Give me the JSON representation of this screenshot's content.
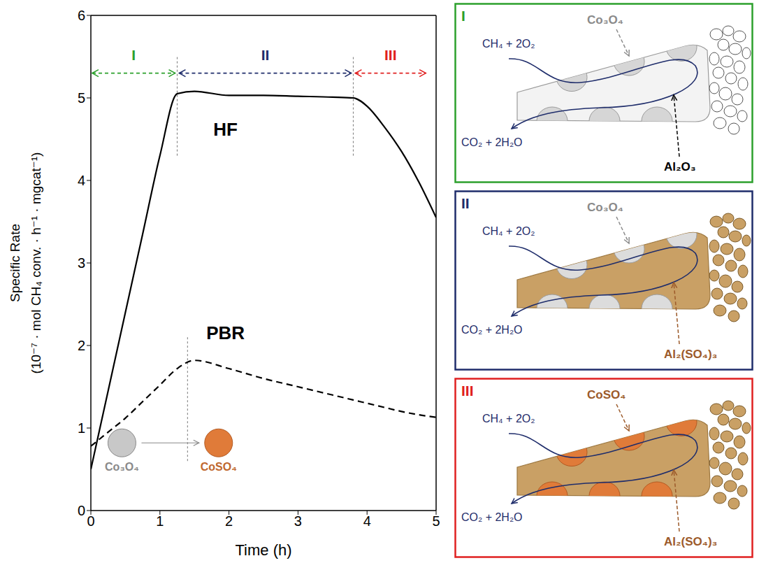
{
  "chart_data": {
    "type": "line",
    "x_label": "Time (h)",
    "y_label": [
      "Specific Rate",
      "(10⁻⁷ · mol CH₄ conv. · h⁻¹ · mgcat⁻¹)"
    ],
    "xlim": [
      0,
      5
    ],
    "xticks": [
      0,
      1,
      2,
      3,
      4,
      5
    ],
    "ylim": [
      0,
      6
    ],
    "yticks": [
      0,
      1,
      2,
      3,
      4,
      5,
      6
    ],
    "grid": false,
    "x": [
      0,
      0.25,
      0.5,
      0.75,
      1,
      1.25,
      1.5,
      2,
      2.5,
      3,
      3.5,
      3.8,
      4,
      4.25,
      4.5,
      4.75,
      5
    ],
    "series": [
      {
        "name": "HF",
        "color": "#000000",
        "line_style": "solid",
        "label_at": [
          1.95,
          4.62
        ],
        "values": [
          0.5,
          1.45,
          2.4,
          3.35,
          4.3,
          5.05,
          5.08,
          5.03,
          5.03,
          5.02,
          5.01,
          5.0,
          4.9,
          4.65,
          4.35,
          3.98,
          3.55
        ]
      },
      {
        "name": "PBR",
        "color": "#000000",
        "line_style": "dashed",
        "label_at": [
          1.95,
          2.15
        ],
        "values": [
          0.78,
          0.95,
          1.12,
          1.32,
          1.52,
          1.72,
          1.82,
          1.72,
          1.6,
          1.5,
          1.4,
          1.34,
          1.3,
          1.25,
          1.2,
          1.16,
          1.13
        ]
      }
    ],
    "phases": [
      {
        "label": "I",
        "color": "#2ca02c",
        "x_start": 0.02,
        "x_end": 1.22,
        "y": 5.3
      },
      {
        "label": "II",
        "color": "#1f2d6b",
        "x_start": 1.28,
        "x_end": 3.77,
        "y": 5.3
      },
      {
        "label": "III",
        "color": "#e02020",
        "x_start": 3.83,
        "x_end": 4.85,
        "y": 5.3
      }
    ],
    "phase_boundaries": {
      "x": [
        1.25,
        3.8
      ],
      "y": [
        4.3,
        5.5
      ]
    },
    "pbr_marker": {
      "x": 1.4,
      "y": [
        0.6,
        2.1
      ]
    },
    "annotation": {
      "from": "Co₃O₄",
      "to": "CoSO₄",
      "from_at": [
        0.45,
        0.82
      ],
      "to_at": [
        1.85,
        0.82
      ]
    }
  },
  "diagram": {
    "panels": [
      {
        "label": "I",
        "color": "#2ca02c",
        "reactants": "CH₄ + 2O₂",
        "products": "CO₂ + 2H₂O",
        "particles": "Co₃O₄",
        "support": "Al₂O₃"
      },
      {
        "label": "II",
        "color": "#1f2d6b",
        "reactants": "CH₄ + 2O₂",
        "products": "CO₂ + 2H₂O",
        "particles": "Co₃O₄",
        "support": "Al₂(SO₄)₃"
      },
      {
        "label": "III",
        "color": "#e02020",
        "reactants": "CH₄ + 2O₂",
        "products": "CO₂ + 2H₂O",
        "particles": "CoSO₄",
        "support": "Al₂(SO₄)₃"
      }
    ]
  }
}
